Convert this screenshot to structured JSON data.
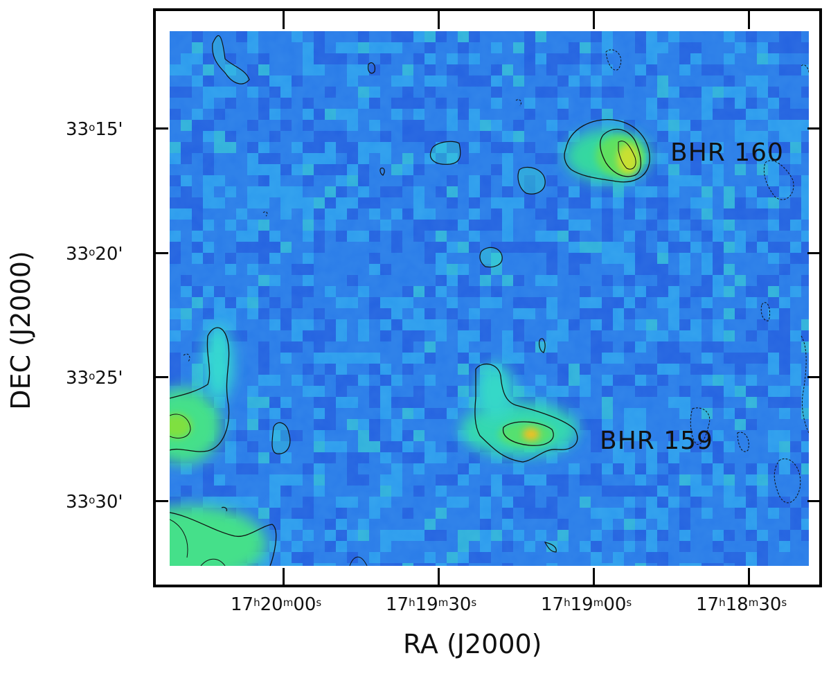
{
  "figure": {
    "x_axis_title": "RA  (J2000)",
    "y_axis_title": "DEC (J2000)",
    "x_ticks": [
      {
        "h": "17",
        "h_unit": "h",
        "m": "20",
        "m_unit": "m",
        "s": "00",
        "s_unit": "s"
      },
      {
        "h": "17",
        "h_unit": "h",
        "m": "19",
        "m_unit": "m",
        "s": "30",
        "s_unit": "s"
      },
      {
        "h": "17",
        "h_unit": "h",
        "m": "19",
        "m_unit": "m",
        "s": "00",
        "s_unit": "s"
      },
      {
        "h": "17",
        "h_unit": "h",
        "m": "18",
        "m_unit": "m",
        "s": "30",
        "s_unit": "s"
      }
    ],
    "y_ticks": [
      {
        "deg": "33",
        "deg_unit": "o",
        "min": "15'"
      },
      {
        "deg": "33",
        "deg_unit": "o",
        "min": "20'"
      },
      {
        "deg": "33",
        "deg_unit": "o",
        "min": "25'"
      },
      {
        "deg": "33",
        "deg_unit": "o",
        "min": "30'"
      }
    ],
    "sources": [
      {
        "label": "BHR 160"
      },
      {
        "label": "BHR 159"
      }
    ],
    "colormap": [
      "#1f4fd9",
      "#2a7be8",
      "#2fb4f0",
      "#36d8d0",
      "#45e08a",
      "#7fe040",
      "#c8e030",
      "#f0c020"
    ]
  }
}
